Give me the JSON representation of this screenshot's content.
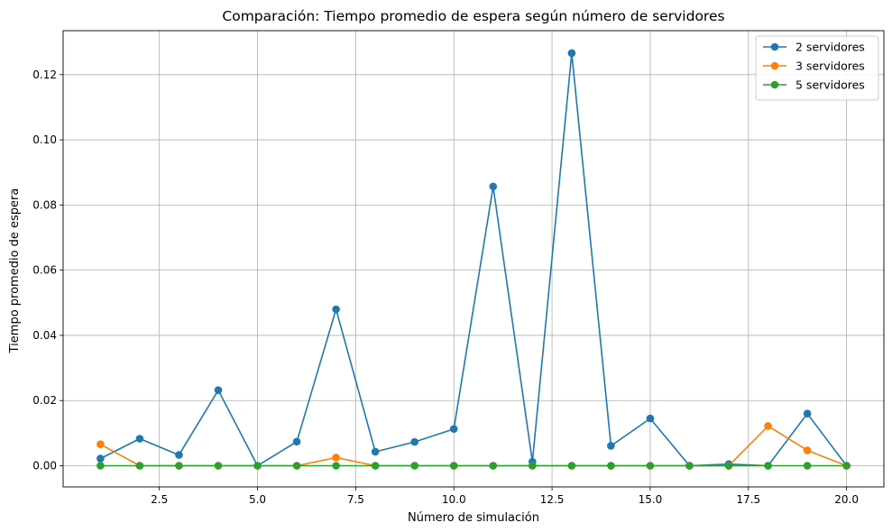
{
  "chart_data": {
    "type": "line",
    "title": "Comparación: Tiempo promedio de espera según número de servidores",
    "xlabel": "Número de simulación",
    "ylabel": "Tiempo promedio de espera",
    "xlim": [
      0.05,
      20.95
    ],
    "ylim": [
      -0.0065,
      0.1335
    ],
    "xticks": [
      2.5,
      5.0,
      7.5,
      10.0,
      12.5,
      15.0,
      17.5,
      20.0
    ],
    "xtick_labels": [
      "2.5",
      "5.0",
      "7.5",
      "10.0",
      "12.5",
      "15.0",
      "17.5",
      "20.0"
    ],
    "yticks": [
      0.0,
      0.02,
      0.04,
      0.06,
      0.08,
      0.1,
      0.12
    ],
    "ytick_labels": [
      "0.00",
      "0.02",
      "0.04",
      "0.06",
      "0.08",
      "0.10",
      "0.12"
    ],
    "grid": true,
    "legend_position": "top-right",
    "x": [
      1,
      2,
      3,
      4,
      5,
      6,
      7,
      8,
      9,
      10,
      11,
      12,
      13,
      14,
      15,
      16,
      17,
      18,
      19,
      20
    ],
    "series": [
      {
        "name": "2 servidores",
        "color": "#1f77b4",
        "values": [
          0.0022,
          0.0083,
          0.0033,
          0.0232,
          0.0,
          0.0074,
          0.048,
          0.0043,
          0.0073,
          0.0113,
          0.0857,
          0.0012,
          0.1266,
          0.0061,
          0.0145,
          0.0,
          0.0005,
          0.0,
          0.016,
          0.0
        ]
      },
      {
        "name": "3 servidores",
        "color": "#ff7f0e",
        "values": [
          0.0066,
          0.0,
          0.0,
          0.0,
          0.0,
          0.0,
          0.0025,
          0.0,
          0.0,
          0.0,
          0.0,
          0.0,
          0.0,
          0.0,
          0.0,
          0.0,
          0.0,
          0.0122,
          0.0047,
          0.0
        ]
      },
      {
        "name": "5 servidores",
        "color": "#2ca02c",
        "values": [
          0.0,
          0.0,
          0.0,
          0.0,
          0.0,
          0.0,
          0.0,
          0.0,
          0.0,
          0.0,
          0.0,
          0.0,
          0.0,
          0.0,
          0.0,
          0.0,
          0.0,
          0.0,
          0.0,
          0.0
        ]
      }
    ]
  }
}
